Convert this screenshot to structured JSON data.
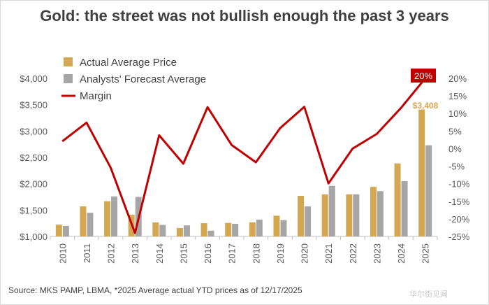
{
  "chart_data": {
    "type": "bar",
    "title": "Gold: the street was not bullish enough the past 3 years",
    "source": "Source: MKS PAMP, LBMA, *2025 Average actual YTD prices as of 12/17/2025",
    "categories": [
      "2010",
      "2011",
      "2012",
      "2013",
      "2014",
      "2015",
      "2016",
      "2017",
      "2018",
      "2019",
      "2020",
      "2021",
      "2022",
      "2023",
      "2024",
      "2025"
    ],
    "series": [
      {
        "name": "Actual Average Price",
        "type": "bar",
        "axis": "left",
        "color": "#d4a853",
        "values": [
          1225,
          1571,
          1669,
          1411,
          1266,
          1160,
          1251,
          1257,
          1268,
          1393,
          1770,
          1799,
          1800,
          1941,
          2386,
          3408
        ]
      },
      {
        "name": "Analysts' Forecast Average",
        "type": "bar",
        "axis": "left",
        "color": "#a6a6a6",
        "values": [
          1200,
          1450,
          1760,
          1750,
          1220,
          1210,
          1110,
          1240,
          1320,
          1310,
          1570,
          1960,
          1800,
          1860,
          2050,
          2730
        ]
      },
      {
        "name": "Margin",
        "type": "line",
        "axis": "right",
        "color": "#c00000",
        "values": [
          2.1,
          7.4,
          -5.5,
          -24.0,
          3.8,
          -4.3,
          11.8,
          1.0,
          -3.9,
          5.8,
          11.9,
          -9.9,
          0.0,
          4.2,
          11.6,
          20.0
        ]
      }
    ],
    "y_left": {
      "min": 1000,
      "max": 4000,
      "ticks": [
        "$1,000",
        "$1,500",
        "$2,000",
        "$2,500",
        "$3,000",
        "$3,500",
        "$4,000"
      ]
    },
    "y_right": {
      "min": -25,
      "max": 20,
      "ticks": [
        "-25%",
        "-20%",
        "-15%",
        "-10%",
        "-5%",
        "0%",
        "5%",
        "10%",
        "15%",
        "20%"
      ]
    },
    "annotations": {
      "last_price": "$3,408",
      "last_margin": "20%"
    },
    "legend_placement": "top-left",
    "grid": false
  },
  "watermark": "华尔街见闻"
}
